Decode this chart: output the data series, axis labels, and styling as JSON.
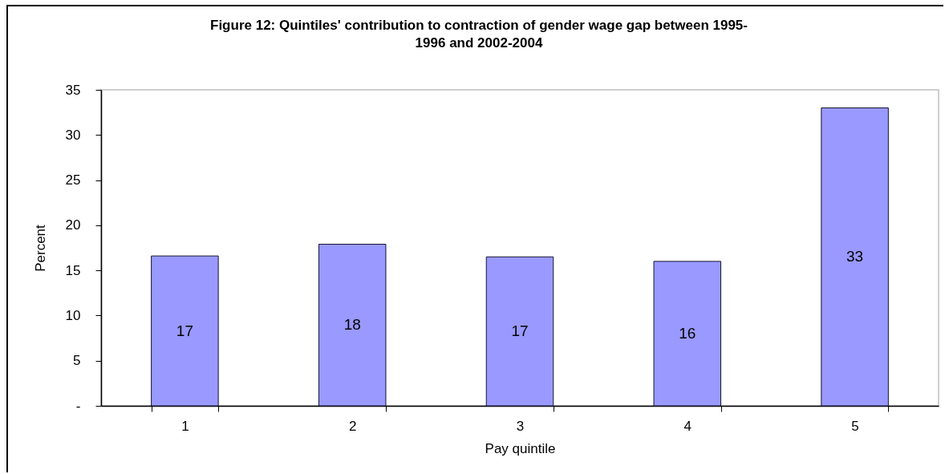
{
  "chart_data": {
    "type": "bar",
    "title": "Figure 12: Quintiles' contribution to contraction of gender wage gap between 1995-1996 and 2002-2004",
    "xlabel": "Pay quintile",
    "ylabel": "Percent",
    "categories": [
      "1",
      "2",
      "3",
      "4",
      "5"
    ],
    "values": [
      16.6,
      17.9,
      16.5,
      16.0,
      33.0
    ],
    "value_labels": [
      "17",
      "18",
      "17",
      "16",
      "33"
    ],
    "color": "#9999ff",
    "ylim": [
      0,
      35
    ],
    "yticks": [
      {
        "value": 0,
        "label": "-"
      },
      5,
      10,
      15,
      20,
      25,
      30,
      35
    ],
    "grid": false
  }
}
